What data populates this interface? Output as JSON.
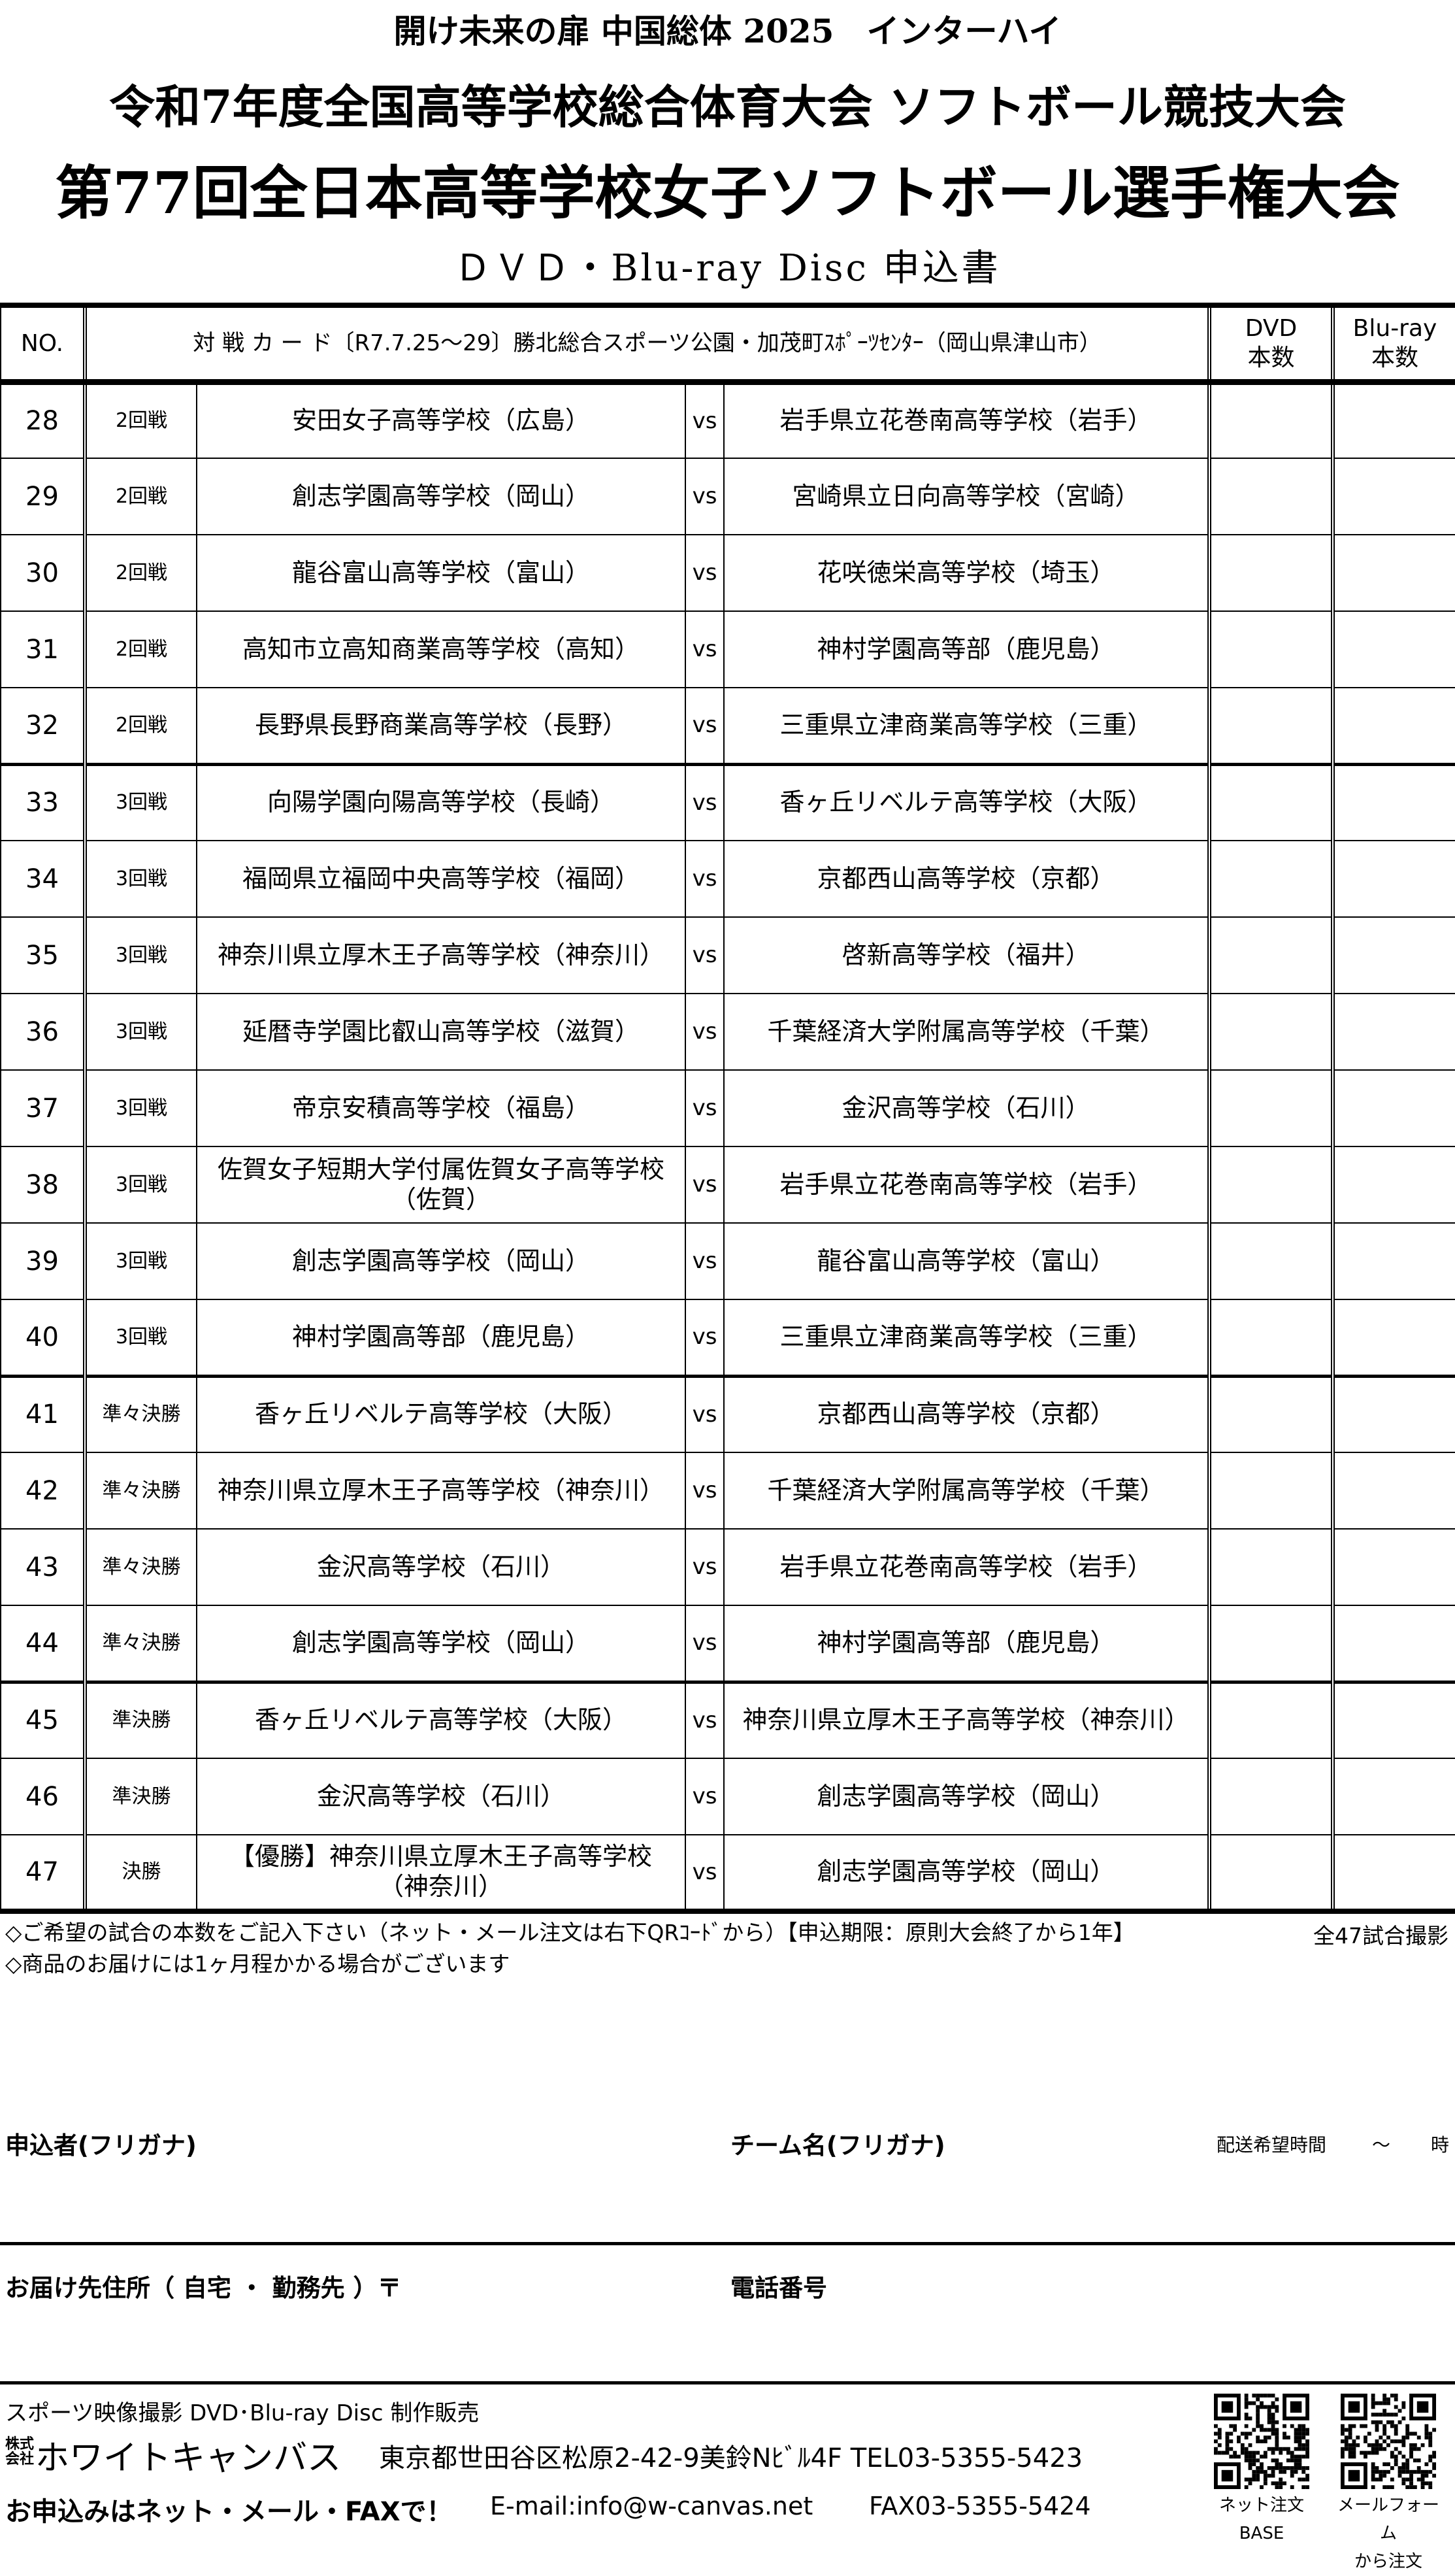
{
  "header": {
    "line1": "開け未来の扉 中国総体 2025　インターハイ",
    "line2": "令和7年度全国高等学校総合体育大会 ソフトボール競技大会",
    "line3": "第77回全日本高等学校女子ソフトボール選手権大会",
    "line4": "ＤＶＤ・Blu-ray Disc 申込書"
  },
  "table": {
    "col_no": "NO.",
    "col_card": "対 戦 カ ー ド〔R7.7.25～29〕勝北総合スポーツ公園・加茂町ｽﾎﾟｰﾂｾﾝﾀｰ（岡山県津山市）",
    "col_dvd": "DVD\n本数",
    "col_bluray": "Blu-ray\n本数",
    "vs": "vs",
    "rows": [
      {
        "no": "28",
        "round": "2回戦",
        "team1": "安田女子高等学校（広島）",
        "team2": "岩手県立花巻南高等学校（岩手）"
      },
      {
        "no": "29",
        "round": "2回戦",
        "team1": "創志学園高等学校（岡山）",
        "team2": "宮崎県立日向高等学校（宮崎）"
      },
      {
        "no": "30",
        "round": "2回戦",
        "team1": "龍谷富山高等学校（富山）",
        "team2": "花咲徳栄高等学校（埼玉）"
      },
      {
        "no": "31",
        "round": "2回戦",
        "team1": "高知市立高知商業高等学校（高知）",
        "team2": "神村学園高等部（鹿児島）"
      },
      {
        "no": "32",
        "round": "2回戦",
        "team1": "長野県長野商業高等学校（長野）",
        "team2": "三重県立津商業高等学校（三重）"
      },
      {
        "no": "33",
        "round": "3回戦",
        "team1": "向陽学園向陽高等学校（長崎）",
        "team2": "香ヶ丘リベルテ高等学校（大阪）"
      },
      {
        "no": "34",
        "round": "3回戦",
        "team1": "福岡県立福岡中央高等学校（福岡）",
        "team2": "京都西山高等学校（京都）"
      },
      {
        "no": "35",
        "round": "3回戦",
        "team1": "神奈川県立厚木王子高等学校（神奈川）",
        "team2": "啓新高等学校（福井）"
      },
      {
        "no": "36",
        "round": "3回戦",
        "team1": "延暦寺学園比叡山高等学校（滋賀）",
        "team2": "千葉経済大学附属高等学校（千葉）"
      },
      {
        "no": "37",
        "round": "3回戦",
        "team1": "帝京安積高等学校（福島）",
        "team2": "金沢高等学校（石川）"
      },
      {
        "no": "38",
        "round": "3回戦",
        "team1": "佐賀女子短期大学付属佐賀女子高等学校\n（佐賀）",
        "team2": "岩手県立花巻南高等学校（岩手）"
      },
      {
        "no": "39",
        "round": "3回戦",
        "team1": "創志学園高等学校（岡山）",
        "team2": "龍谷富山高等学校（富山）"
      },
      {
        "no": "40",
        "round": "3回戦",
        "team1": "神村学園高等部（鹿児島）",
        "team2": "三重県立津商業高等学校（三重）"
      },
      {
        "no": "41",
        "round": "準々決勝",
        "team1": "香ヶ丘リベルテ高等学校（大阪）",
        "team2": "京都西山高等学校（京都）"
      },
      {
        "no": "42",
        "round": "準々決勝",
        "team1": "神奈川県立厚木王子高等学校（神奈川）",
        "team2": "千葉経済大学附属高等学校（千葉）"
      },
      {
        "no": "43",
        "round": "準々決勝",
        "team1": "金沢高等学校（石川）",
        "team2": "岩手県立花巻南高等学校（岩手）"
      },
      {
        "no": "44",
        "round": "準々決勝",
        "team1": "創志学園高等学校（岡山）",
        "team2": "神村学園高等部（鹿児島）"
      },
      {
        "no": "45",
        "round": "準決勝",
        "team1": "香ヶ丘リベルテ高等学校（大阪）",
        "team2": "神奈川県立厚木王子高等学校（神奈川）"
      },
      {
        "no": "46",
        "round": "準決勝",
        "team1": "金沢高等学校（石川）",
        "team2": "創志学園高等学校（岡山）"
      },
      {
        "no": "47",
        "round": "決勝",
        "team1": "【優勝】神奈川県立厚木王子高等学校\n（神奈川）",
        "team2": "創志学園高等学校（岡山）"
      }
    ]
  },
  "notes": {
    "note1": "◇ご希望の試合の本数をご記入下さい（ネット・メール注文は右下QRｺｰﾄﾞから）【申込期限：原則大会終了から1年】",
    "note2": "◇商品のお届けには1ヶ月程かかる場合がございます",
    "total": "全47試合撮影"
  },
  "form": {
    "applicant": "申込者(フリガナ)",
    "team": "チーム名(フリガナ)",
    "delivery_time": "配送希望時間",
    "tilde": "～",
    "hour": "時",
    "address": "お届け先住所（ 自宅 ・ 勤務先 ）〒",
    "phone": "電話番号"
  },
  "footer": {
    "tagline": "スポーツ映像撮影 DVD･Blu-ray Disc 制作販売",
    "company_prefix": "株式\n会社",
    "company": "ホワイトキャンバス",
    "address": "東京都世田谷区松原2-42-9美鈴Nﾋﾞﾙ4F TEL03-5355-5423",
    "cta": "お申込みはネット・メール・FAXで！",
    "email": "E-mail:info@w-canvas.net",
    "fax": "FAX03-5355-5424",
    "qr1_caption": "ネット注文\nBASE",
    "qr2_caption": "メールフォーム\nから注文"
  }
}
